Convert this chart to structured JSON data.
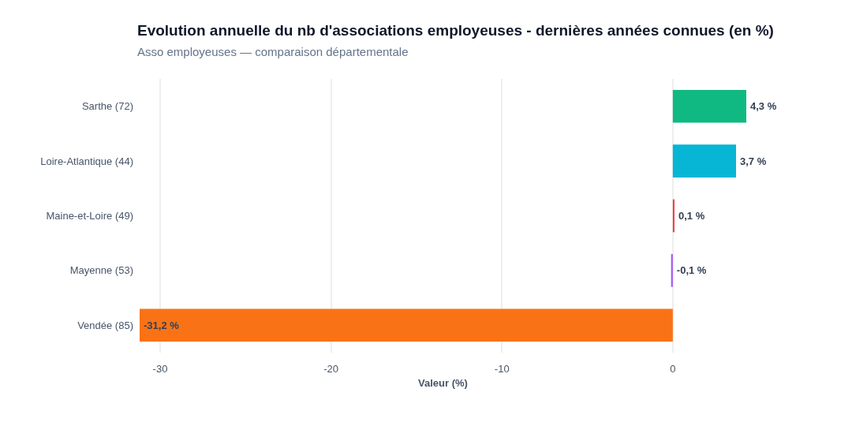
{
  "chart_data": {
    "type": "bar",
    "orientation": "horizontal",
    "title": "Evolution annuelle du nb d'associations employeuses - dernières années connues (en %)",
    "subtitle": "Asso employeuses — comparaison départementale",
    "xlabel": "Valeur (%)",
    "categories": [
      "Sarthe (72)",
      "Loire-Atlantique (44)",
      "Maine-et-Loire (49)",
      "Mayenne (53)",
      "Vendée (85)"
    ],
    "values": [
      4.3,
      3.7,
      0.1,
      -0.1,
      -31.2
    ],
    "colors": [
      "#10b981",
      "#06b6d4",
      "#ef4444",
      "#a855f7",
      "#f97316"
    ],
    "value_labels": [
      "4,3 %",
      "3,7 %",
      "0,1 %",
      "-0,1 %",
      "-31,2 %"
    ],
    "xlim": [
      -31.2,
      4.3
    ],
    "xticks": [
      -30,
      -20,
      -10,
      0
    ],
    "grid": "x"
  }
}
